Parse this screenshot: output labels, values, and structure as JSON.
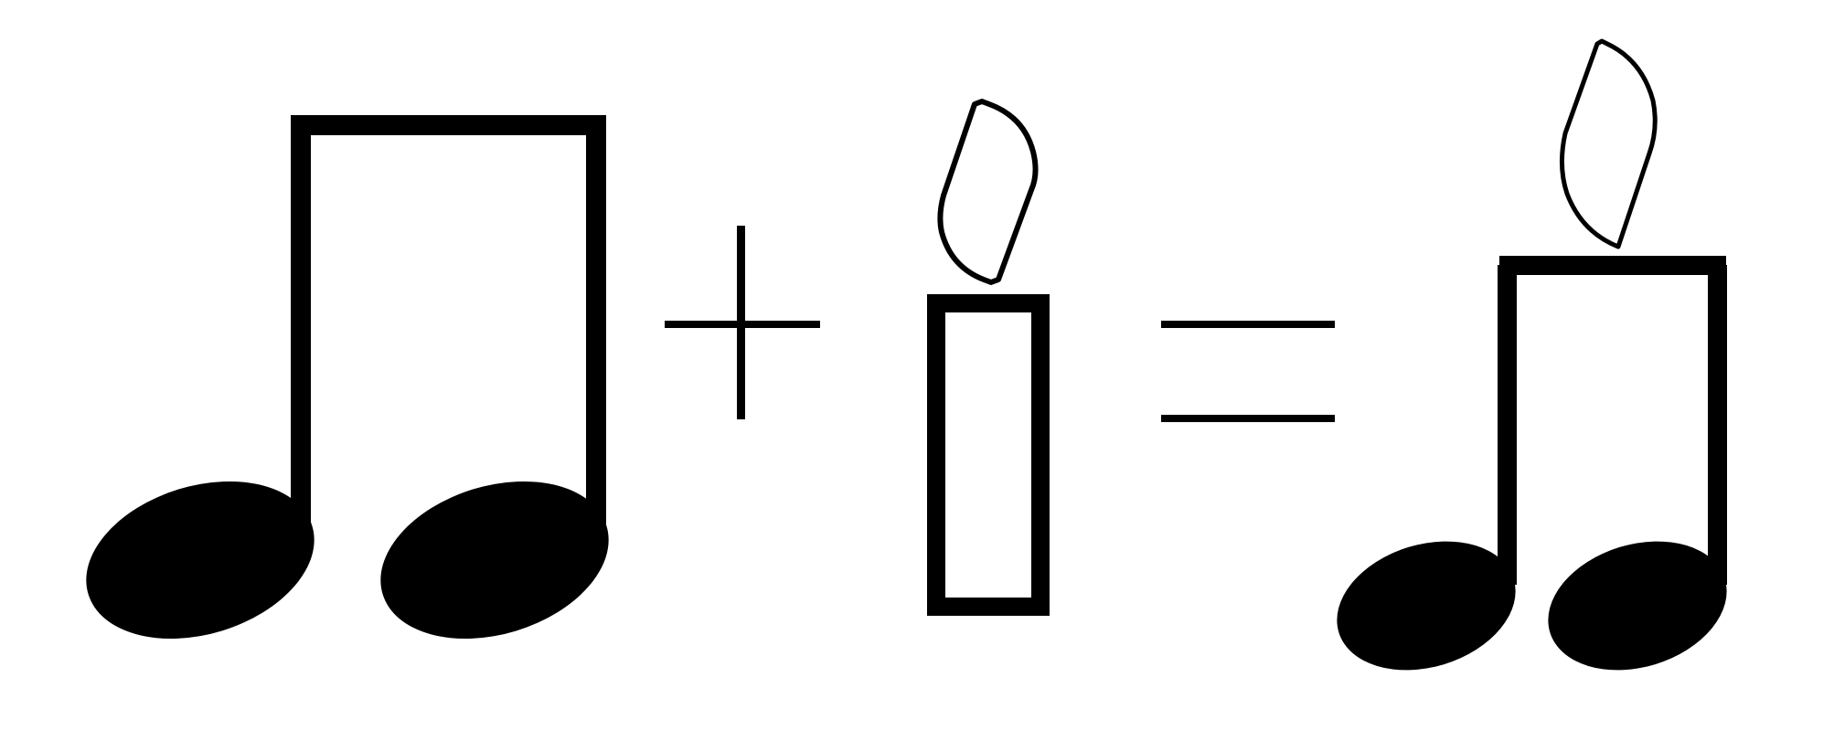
{
  "diagram": {
    "ink_color": "#000000",
    "background_color": "#ffffff",
    "sequence": [
      "beamed-eighth-notes-icon",
      "plus-sign-icon",
      "candle-icon",
      "equals-sign-icon",
      "beamed-eighth-notes-with-flame-icon"
    ]
  }
}
